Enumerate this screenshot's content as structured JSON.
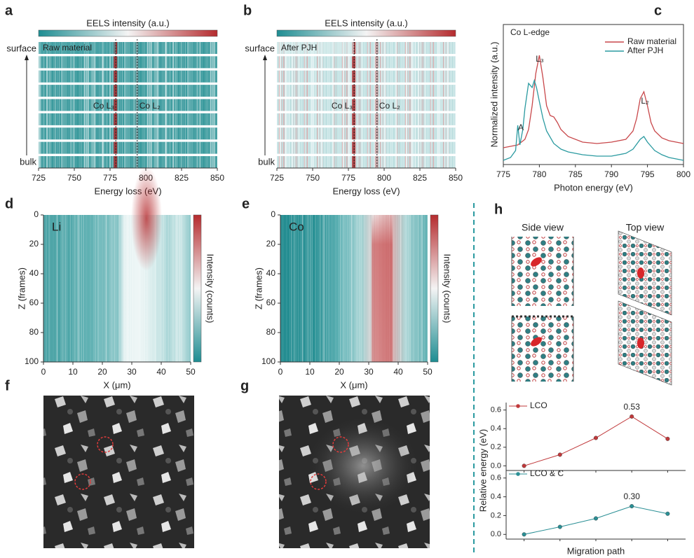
{
  "chart_data": [
    {
      "type": "stripe-heatmap",
      "panel": "a",
      "title": "EELS intensity (a.u.)",
      "label": "Raw material",
      "top_label": "surface",
      "bottom_label": "bulk",
      "xlabel": "Energy loss (eV)",
      "xlim": [
        725,
        850
      ],
      "xticks": [
        725,
        750,
        775,
        800,
        825,
        850
      ],
      "markers": [
        {
          "label": "Co L₃",
          "value": 779
        },
        {
          "label": "Co L₂",
          "value": 794
        }
      ]
    },
    {
      "type": "stripe-heatmap",
      "panel": "b",
      "title": "EELS intensity (a.u.)",
      "label": "After PJH",
      "top_label": "surface",
      "bottom_label": "bulk",
      "xlabel": "Energy loss (eV)",
      "xlim": [
        725,
        850
      ],
      "xticks": [
        725,
        750,
        775,
        800,
        825,
        850
      ],
      "markers": [
        {
          "label": "Co L₃",
          "value": 779
        },
        {
          "label": "Co L₂",
          "value": 795
        }
      ]
    },
    {
      "type": "line",
      "panel": "c",
      "xlabel": "Photon energy (eV)",
      "ylabel": "Normalized intensity (a.u.)",
      "xlim": [
        775,
        800
      ],
      "xticks": [
        775,
        780,
        785,
        790,
        795,
        800
      ],
      "ylim": [
        0,
        1
      ],
      "legend": "upper right",
      "annotations": [
        "Co L-edge",
        "L₃",
        "L₂",
        "A"
      ],
      "series": [
        {
          "name": "Raw material",
          "color": "#c8474a",
          "x": [
            775,
            776,
            777,
            778,
            778.5,
            779,
            779.5,
            780,
            780.5,
            781,
            781.5,
            782,
            782.5,
            783,
            784,
            786,
            788,
            790,
            792,
            793,
            793.5,
            794,
            794.5,
            795,
            795.5,
            796,
            797,
            798,
            800
          ],
          "values": [
            0.12,
            0.13,
            0.14,
            0.18,
            0.25,
            0.42,
            0.65,
            0.78,
            0.62,
            0.42,
            0.35,
            0.34,
            0.3,
            0.25,
            0.2,
            0.16,
            0.15,
            0.16,
            0.18,
            0.24,
            0.33,
            0.47,
            0.52,
            0.42,
            0.3,
            0.24,
            0.19,
            0.17,
            0.15
          ]
        },
        {
          "name": "After PJH",
          "color": "#2a9aa0",
          "x": [
            775,
            776,
            776.7,
            777,
            777.3,
            777.7,
            778,
            778.5,
            779,
            779.3,
            779.6,
            780,
            780.5,
            781,
            782,
            783,
            784,
            786,
            788,
            790,
            792,
            793,
            794,
            794.5,
            795,
            796,
            797,
            798,
            800
          ],
          "values": [
            0.03,
            0.05,
            0.1,
            0.28,
            0.14,
            0.25,
            0.4,
            0.58,
            0.55,
            0.6,
            0.55,
            0.45,
            0.33,
            0.24,
            0.15,
            0.11,
            0.09,
            0.07,
            0.06,
            0.06,
            0.08,
            0.11,
            0.18,
            0.2,
            0.16,
            0.1,
            0.07,
            0.05,
            0.03
          ]
        }
      ]
    },
    {
      "type": "heatmap",
      "panel": "d",
      "label": "Li",
      "xlabel": "X (μm)",
      "ylabel": "Z (frames)",
      "colorbar_label": "Intensity (counts)",
      "xlim": [
        0,
        50
      ],
      "xticks": [
        0,
        10,
        20,
        30,
        40,
        50
      ],
      "ylim": [
        100,
        0
      ],
      "yticks": [
        0,
        20,
        40,
        60,
        80,
        100
      ]
    },
    {
      "type": "heatmap",
      "panel": "e",
      "label": "Co",
      "xlabel": "X (μm)",
      "ylabel": "Z (frames)",
      "colorbar_label": "Intensity (counts)",
      "xlim": [
        0,
        50
      ],
      "xticks": [
        0,
        10,
        20,
        30,
        40,
        50
      ],
      "ylim": [
        100,
        0
      ],
      "yticks": [
        0,
        20,
        40,
        60,
        80,
        100
      ]
    },
    {
      "type": "energy",
      "categories": [
        null,
        null,
        null,
        null,
        null
      ],
      "ylim": [
        -0.05,
        0.68
      ],
      "yticks": [
        {
          "value": 0,
          "label": "0.0"
        },
        0.2,
        0.4,
        0.6
      ],
      "series": [
        {
          "name": "LCO",
          "color": "#c0393b",
          "values": [
            0,
            0.12,
            0.3,
            0.53,
            0.29
          ],
          "value_labels": [
            null,
            null,
            null,
            "0.53",
            null
          ]
        }
      ]
    },
    {
      "type": "energy",
      "categories": [
        null,
        null,
        null,
        null,
        null
      ],
      "ylim": [
        -0.05,
        0.68
      ],
      "yticks": [
        {
          "value": 0,
          "label": "0.0"
        },
        0.2,
        0.4,
        0.6
      ],
      "ylabel": "Relative energy (eV)",
      "xlabel": "Migration path",
      "series": [
        {
          "name": "LCO & C",
          "color": "#2a8f95",
          "values": [
            0,
            0.08,
            0.17,
            0.3,
            0.22
          ],
          "value_labels": [
            null,
            null,
            null,
            "0.30",
            null
          ]
        }
      ]
    }
  ],
  "images": [
    {
      "panel": "f"
    },
    {
      "panel": "g"
    }
  ],
  "structures": {
    "panel": "h",
    "side": "Side view",
    "top": "Top view"
  }
}
